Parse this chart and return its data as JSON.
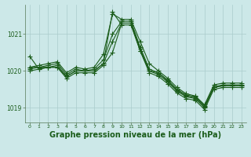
{
  "background_color": "#cce8e8",
  "grid_color": "#aacccc",
  "line_color": "#1a5c1a",
  "marker": "+",
  "markersize": 4,
  "linewidth": 0.8,
  "title": "Graphe pression niveau de la mer (hPa)",
  "title_fontsize": 7,
  "ylabel_ticks": [
    1019,
    1020,
    1021
  ],
  "xlim": [
    -0.5,
    23.5
  ],
  "ylim": [
    1018.6,
    1021.8
  ],
  "xticks": [
    0,
    1,
    2,
    3,
    4,
    5,
    6,
    7,
    8,
    9,
    10,
    11,
    12,
    13,
    14,
    15,
    16,
    17,
    18,
    19,
    20,
    21,
    22,
    23
  ],
  "series": [
    [
      1020.4,
      1020.05,
      1020.1,
      1020.1,
      1019.85,
      1020.0,
      1020.0,
      1020.0,
      1020.2,
      1021.6,
      1021.25,
      1021.25,
      1020.55,
      1020.0,
      1019.95,
      1019.75,
      1019.5,
      1019.35,
      1019.3,
      1019.05,
      1019.55,
      1019.6,
      1019.6,
      1019.6
    ],
    [
      1020.0,
      1020.05,
      1020.1,
      1020.1,
      1019.8,
      1019.95,
      1019.95,
      1019.95,
      1020.15,
      1020.5,
      1021.3,
      1021.3,
      1020.55,
      1019.95,
      1019.85,
      1019.65,
      1019.4,
      1019.25,
      1019.2,
      1018.95,
      1019.5,
      1019.55,
      1019.55,
      1019.55
    ],
    [
      1020.05,
      1020.1,
      1020.1,
      1020.15,
      1019.85,
      1020.0,
      1020.0,
      1020.0,
      1020.2,
      1020.8,
      1021.3,
      1021.3,
      1020.6,
      1020.0,
      1019.9,
      1019.7,
      1019.45,
      1019.3,
      1019.25,
      1019.0,
      1019.55,
      1019.6,
      1019.6,
      1019.6
    ],
    [
      1020.1,
      1020.1,
      1020.15,
      1020.2,
      1019.9,
      1020.05,
      1020.0,
      1020.05,
      1020.3,
      1021.0,
      1021.35,
      1021.35,
      1020.65,
      1020.05,
      1019.95,
      1019.72,
      1019.48,
      1019.32,
      1019.27,
      1019.02,
      1019.57,
      1019.62,
      1019.62,
      1019.62
    ],
    [
      1020.1,
      1020.15,
      1020.2,
      1020.25,
      1019.95,
      1020.1,
      1020.05,
      1020.1,
      1020.45,
      1021.55,
      1021.4,
      1021.4,
      1020.8,
      1020.2,
      1020.0,
      1019.8,
      1019.55,
      1019.38,
      1019.32,
      1019.08,
      1019.62,
      1019.67,
      1019.67,
      1019.67
    ]
  ]
}
